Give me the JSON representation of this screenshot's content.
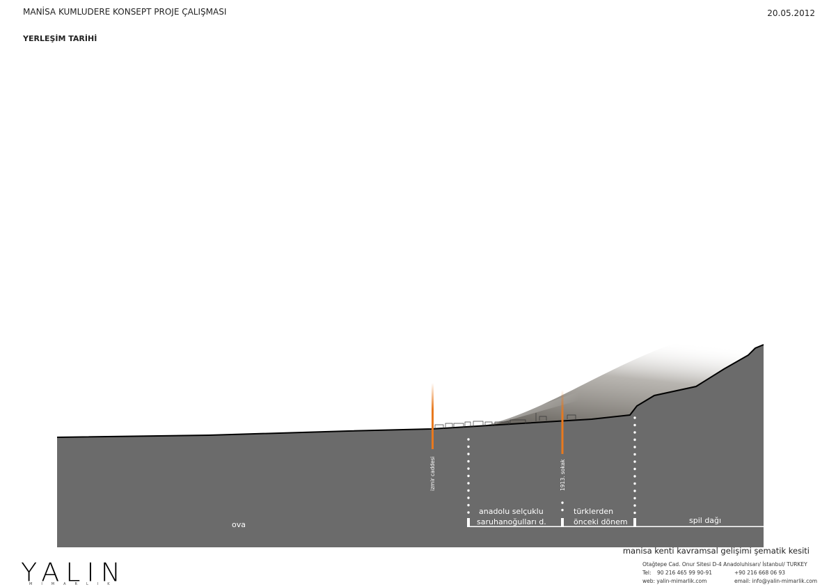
{
  "header": {
    "title": "MANİSA KUMLUDERE KONSEPT PROJE ÇALIŞMASI",
    "date": "20.05.2012",
    "subtitle": "YERLEŞİM TARİHİ"
  },
  "section": {
    "streets": [
      "izmir caddesi",
      "1913. sokak"
    ],
    "zones": [
      {
        "label": "ova"
      },
      {
        "line1": "anadolu selçuklu",
        "line2": "saruhanoğulları d."
      },
      {
        "line1": "türklerden",
        "line2": "önceki dönem"
      },
      {
        "label": "spil dağı"
      }
    ],
    "colors": {
      "ground": "#6b6b6b",
      "street": "#e8791e",
      "divider": "#ffffff"
    }
  },
  "footer": {
    "caption": "manisa kenti kavramsal gelişimi şematik kesiti",
    "address": "Otağtepe Cad. Onur Sitesi  D-4 Anadoluhisarı/ İstanbul/ TURKEY",
    "tel_label": "Tel:",
    "tel1": "90 216 465 99 90-91",
    "tel2": "+90 216 668 06 93",
    "web": "web: yalin-mimarlik.com",
    "email": "email: info@yalin-mimarlik.com",
    "logo": "YALIN",
    "logo_sub": "MIMARLIK"
  }
}
